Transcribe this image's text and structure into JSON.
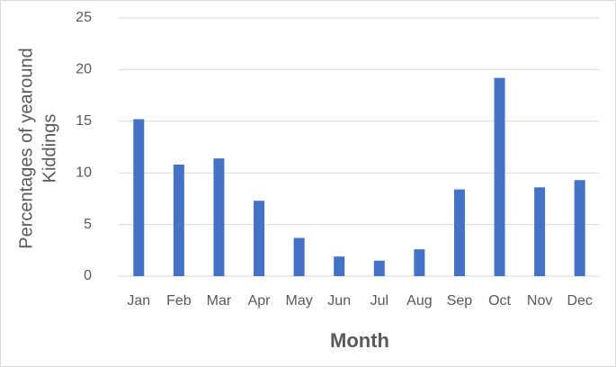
{
  "chart_data": {
    "type": "bar",
    "xlabel": "Month",
    "ylabel": [
      "Percentages of yearound",
      "Kiddings"
    ],
    "categories": [
      "Jan",
      "Feb",
      "Mar",
      "Apr",
      "May",
      "Jun",
      "Jul",
      "Aug",
      "Sep",
      "Oct",
      "Nov",
      "Dec"
    ],
    "values": [
      15.2,
      10.8,
      11.4,
      7.3,
      3.7,
      1.9,
      1.5,
      2.6,
      8.4,
      19.2,
      8.6,
      9.3
    ],
    "color": "#4472c4",
    "ylim": [
      0,
      25
    ],
    "yticks": [
      0,
      5,
      10,
      15,
      20,
      25
    ],
    "grid": true
  }
}
